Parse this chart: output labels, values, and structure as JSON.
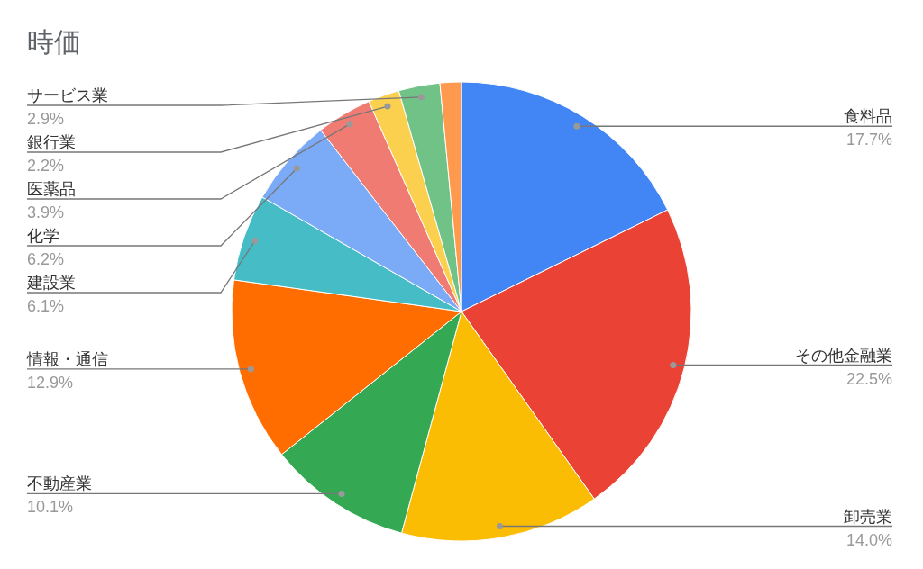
{
  "chart_data": {
    "type": "pie",
    "title": "時価",
    "categories": [
      "食料品",
      "その他金融業",
      "卸売業",
      "不動産業",
      "情報・通信",
      "建設業",
      "化学",
      "医薬品",
      "銀行業",
      "サービス業",
      null
    ],
    "values": [
      17.7,
      22.5,
      14.0,
      10.1,
      12.9,
      6.1,
      6.2,
      3.9,
      2.2,
      2.9,
      1.5
    ],
    "colors": [
      "#4285f4",
      "#ea4335",
      "#fbbc04",
      "#34a853",
      "#ff6d01",
      "#46bdc6",
      "#7baaf7",
      "#f07b72",
      "#fcd04f",
      "#71c287",
      "#ff994d"
    ],
    "value_labels": [
      "17.7%",
      "22.5%",
      "14.0%",
      "10.1%",
      "12.9%",
      "6.1%",
      "6.2%",
      "3.9%",
      "2.2%",
      "2.9%",
      null
    ]
  }
}
